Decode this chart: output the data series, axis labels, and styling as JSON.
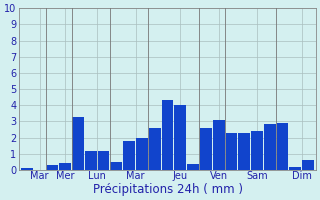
{
  "bar_values": [
    0.1,
    0.0,
    0.3,
    0.45,
    3.3,
    1.2,
    1.2,
    0.5,
    1.8,
    2.0,
    2.6,
    4.3,
    4.0,
    0.4,
    2.6,
    3.1,
    2.3,
    2.3,
    2.4,
    2.85,
    2.9,
    0.2,
    0.6
  ],
  "n_bars": 23,
  "day_labels": [
    "Mar",
    "Mer",
    "Lun",
    "Mar",
    "Jeu",
    "Ven",
    "Sam",
    "Dim"
  ],
  "xlabel": "Précipitations 24h ( mm )",
  "ylim": [
    0,
    10
  ],
  "yticks": [
    0,
    1,
    2,
    3,
    4,
    5,
    6,
    7,
    8,
    9,
    10
  ],
  "bar_color": "#1144cc",
  "background_color": "#d4f0f0",
  "grid_color": "#aabfbf",
  "axis_label_color": "#2222aa",
  "tick_color": "#2222aa",
  "xlabel_fontsize": 8.5,
  "tick_fontsize": 7,
  "separator_positions": [
    2,
    4,
    7,
    10,
    14,
    16,
    20
  ],
  "day_label_centers": [
    1.0,
    3.0,
    5.5,
    8.5,
    12.0,
    15.0,
    18.0,
    21.5
  ]
}
